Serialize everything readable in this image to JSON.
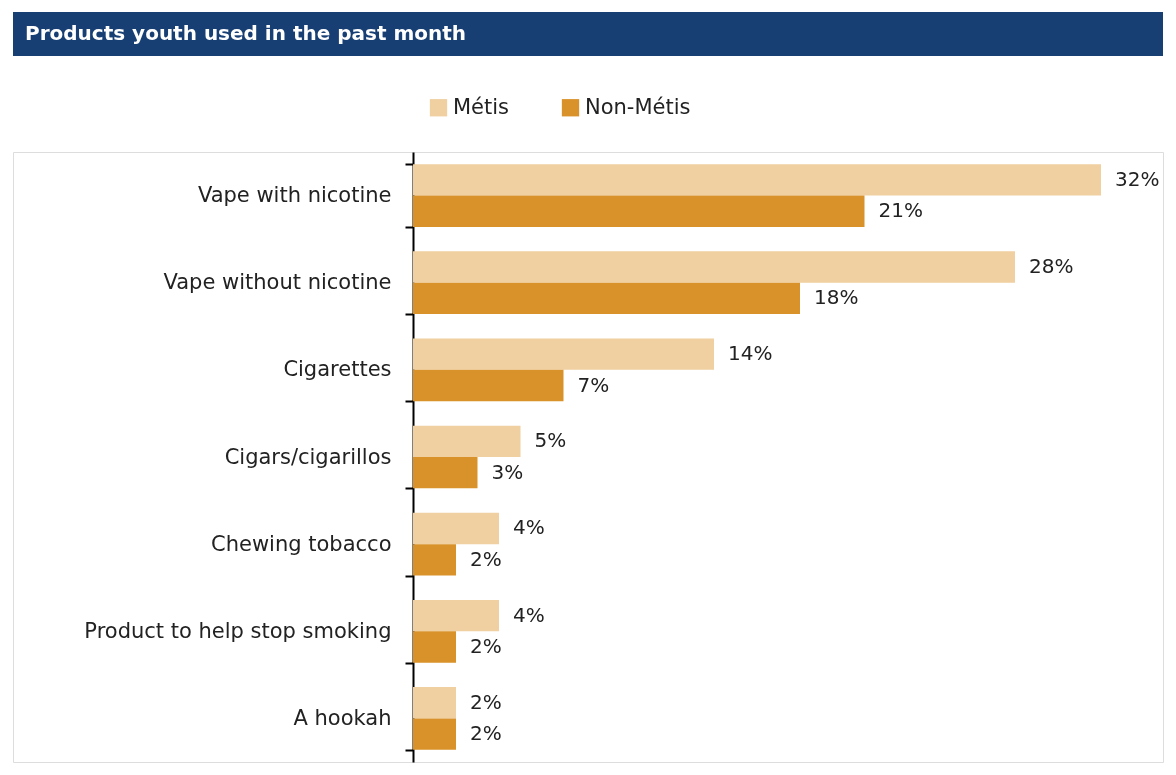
{
  "chart_data": {
    "type": "bar",
    "orientation": "horizontal",
    "title": "Products youth used in the past month",
    "categories": [
      "Vape with nicotine",
      "Vape without nicotine",
      "Cigarettes",
      "Cigars/cigarillos",
      "Chewing tobacco",
      "Product to help stop smoking",
      "A hookah"
    ],
    "series": [
      {
        "name": "Métis",
        "color": "#f0cfa0",
        "values": [
          32,
          28,
          14,
          5,
          4,
          4,
          2
        ],
        "value_labels": [
          "32%",
          "28%",
          "14%",
          "5%",
          "4%",
          "4%",
          "2%"
        ]
      },
      {
        "name": "Non-Métis",
        "color": "#d9922a",
        "values": [
          21,
          18,
          7,
          3,
          2,
          2,
          2
        ],
        "value_labels": [
          "21%",
          "18%",
          "7%",
          "3%",
          "2%",
          "2%",
          "2%"
        ]
      }
    ],
    "legend": "top",
    "grid": false
  }
}
